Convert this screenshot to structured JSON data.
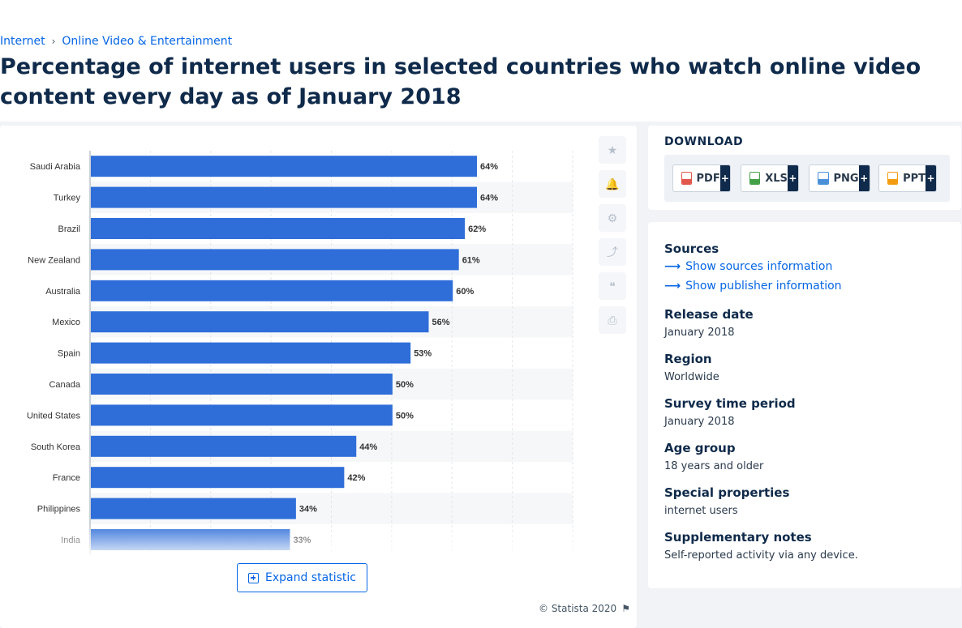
{
  "breadcrumb": {
    "items": [
      "Internet",
      "Online Video & Entertainment"
    ],
    "separator": "›"
  },
  "title": "Percentage of internet users in selected countries who watch online video content every day as of January 2018",
  "chart_data": {
    "type": "bar",
    "orientation": "horizontal",
    "categories": [
      "Saudi Arabia",
      "Turkey",
      "Brazil",
      "New Zealand",
      "Australia",
      "Mexico",
      "Spain",
      "Canada",
      "United States",
      "South Korea",
      "France",
      "Philippines",
      "India"
    ],
    "values": [
      64,
      64,
      62,
      61,
      60,
      56,
      53,
      50,
      50,
      44,
      42,
      34,
      33
    ],
    "value_labels": [
      "64%",
      "64%",
      "62%",
      "61%",
      "60%",
      "56%",
      "53%",
      "50%",
      "50%",
      "44%",
      "42%",
      "34%",
      "33%"
    ],
    "xlim": [
      0,
      80
    ],
    "bar_color": "#2f6ed9",
    "grid": true,
    "legend": "none",
    "title": "",
    "xlabel": "",
    "ylabel": ""
  },
  "tools": {
    "icons": [
      "star-icon",
      "bell-icon",
      "gear-icon",
      "share-icon",
      "quote-icon",
      "print-icon"
    ],
    "glyphs": [
      "★",
      "🔔",
      "⚙",
      "⤴",
      "❝",
      "⎙"
    ]
  },
  "expand": {
    "label": "Expand statistic"
  },
  "copyright": {
    "text": "© Statista 2020",
    "flag_glyph": "⚑"
  },
  "download": {
    "title": "DOWNLOAD",
    "buttons": [
      {
        "label": "PDF",
        "color": "#e2574c"
      },
      {
        "label": "XLS",
        "color": "#43a047"
      },
      {
        "label": "PNG",
        "color": "#4a90d9"
      },
      {
        "label": "PPT",
        "color": "#f39c12"
      }
    ],
    "plus": "+"
  },
  "info": {
    "sources_label": "Sources",
    "show_sources": "Show sources information",
    "show_publisher": "Show publisher information",
    "release_label": "Release date",
    "release_value": "January 2018",
    "region_label": "Region",
    "region_value": "Worldwide",
    "survey_label": "Survey time period",
    "survey_value": "January 2018",
    "age_label": "Age group",
    "age_value": "18 years and older",
    "special_label": "Special properties",
    "special_value": "internet users",
    "notes_label": "Supplementary notes",
    "notes_value": "Self-reported activity via any device."
  }
}
